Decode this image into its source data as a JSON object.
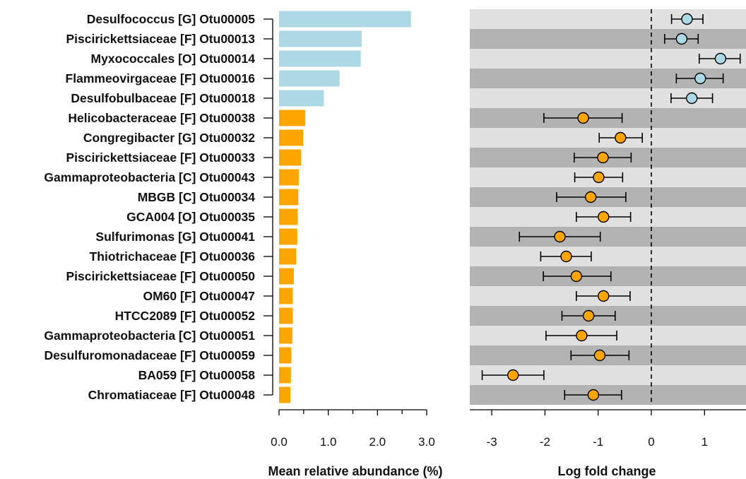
{
  "chart_data": [
    {
      "type": "bar",
      "orientation": "horizontal",
      "xlabel": "Mean relative abundance (%)",
      "xlim": [
        0,
        3.0
      ],
      "xticks": [
        "0.0",
        "1.0",
        "2.0",
        "3.0"
      ],
      "categories": [
        "Desulfococcus [G] Otu00005",
        "Piscirickettsiaceae [F] Otu00013",
        "Myxococcales [O] Otu00014",
        "Flammeovirgaceae [F] Otu00016",
        "Desulfobulbaceae [F] Otu00018",
        "Helicobacteraceae [F] Otu00038",
        "Congregibacter [G] Otu00032",
        "Piscirickettsiaceae [F] Otu00033",
        "Gammaproteobacteria [C] Otu00043",
        "MBGB [C] Otu00034",
        "GCA004 [O] Otu00035",
        "Sulfurimonas [G] Otu00041",
        "Thiotrichaceae [F] Otu00036",
        "Piscirickettsiaceae [F] Otu00050",
        "OM60 [F] Otu00047",
        "HTCC2089 [F] Otu00052",
        "Gammaproteobacteria [C] Otu00051",
        "Desulfuromonadaceae [F] Otu00059",
        "BA059 [F] Otu00058",
        "Chromatiaceae [F] Otu00048"
      ],
      "values": [
        2.68,
        1.68,
        1.66,
        1.23,
        0.91,
        0.53,
        0.49,
        0.45,
        0.4,
        0.39,
        0.38,
        0.37,
        0.35,
        0.3,
        0.28,
        0.28,
        0.27,
        0.25,
        0.24,
        0.23
      ],
      "colors": {
        "positive": "#add8e6",
        "negative": "#ffa500"
      }
    },
    {
      "type": "scatter",
      "subtype": "dot-and-whisker",
      "xlabel": "Log fold change",
      "xlim": [
        -3.35,
        1.75
      ],
      "xticks": [
        "-3",
        "-2",
        "-1",
        "0",
        "1"
      ],
      "reference_line": 0,
      "row_band_colors": [
        "#e0e0e0",
        "#b3b3b3"
      ],
      "points": [
        {
          "estimate": 0.67,
          "low": 0.38,
          "high": 0.97
        },
        {
          "estimate": 0.57,
          "low": 0.25,
          "high": 0.88
        },
        {
          "estimate": 1.3,
          "low": 0.9,
          "high": 1.67
        },
        {
          "estimate": 0.92,
          "low": 0.47,
          "high": 1.35
        },
        {
          "estimate": 0.76,
          "low": 0.37,
          "high": 1.15
        },
        {
          "estimate": -1.28,
          "low": -2.02,
          "high": -0.55
        },
        {
          "estimate": -0.58,
          "low": -0.98,
          "high": -0.17
        },
        {
          "estimate": -0.91,
          "low": -1.45,
          "high": -0.38
        },
        {
          "estimate": -0.99,
          "low": -1.44,
          "high": -0.54
        },
        {
          "estimate": -1.14,
          "low": -1.78,
          "high": -0.48
        },
        {
          "estimate": -0.9,
          "low": -1.41,
          "high": -0.39
        },
        {
          "estimate": -1.72,
          "low": -2.48,
          "high": -0.96
        },
        {
          "estimate": -1.6,
          "low": -2.08,
          "high": -1.13
        },
        {
          "estimate": -1.41,
          "low": -2.03,
          "high": -0.76
        },
        {
          "estimate": -0.9,
          "low": -1.41,
          "high": -0.4
        },
        {
          "estimate": -1.18,
          "low": -1.68,
          "high": -0.68
        },
        {
          "estimate": -1.31,
          "low": -1.98,
          "high": -0.65
        },
        {
          "estimate": -0.97,
          "low": -1.51,
          "high": -0.42
        },
        {
          "estimate": -2.6,
          "low": -3.18,
          "high": -2.02
        },
        {
          "estimate": -1.09,
          "low": -1.63,
          "high": -0.56
        }
      ],
      "colors": {
        "positive": "#add8e6",
        "negative": "#ffa500"
      }
    }
  ]
}
